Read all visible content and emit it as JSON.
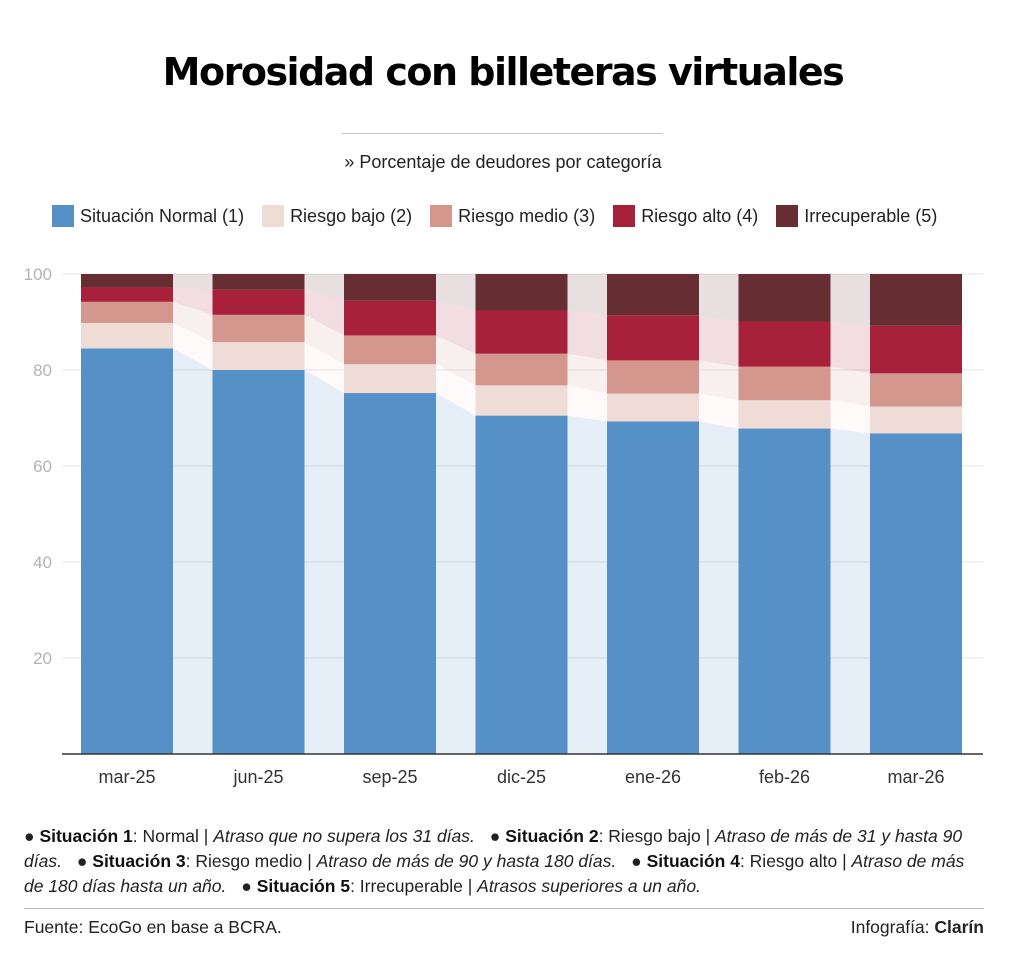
{
  "title": "Morosidad con billeteras virtuales",
  "subtitle": "» Porcentaje de deudores por categoría",
  "legend": [
    {
      "label": "Situación Normal (1)",
      "color": "#5590c6"
    },
    {
      "label": "Riesgo bajo (2)",
      "color": "#f0dcd7"
    },
    {
      "label": "Riesgo medio (3)",
      "color": "#d3978d"
    },
    {
      "label": "Riesgo alto (4)",
      "color": "#a8213a"
    },
    {
      "label": "Irrecuperable (5)",
      "color": "#662e32"
    }
  ],
  "chart_data": {
    "type": "bar",
    "stacked": true,
    "categories": [
      "mar-25",
      "jun-25",
      "sep-25",
      "dic-25",
      "ene-26",
      "feb-26",
      "mar-26"
    ],
    "series": [
      {
        "name": "Situación Normal (1)",
        "color": "#5590c6",
        "values": [
          84.5,
          80.0,
          75.2,
          70.5,
          69.3,
          67.8,
          66.8
        ]
      },
      {
        "name": "Riesgo bajo (2)",
        "color": "#f0dcd7",
        "values": [
          5.3,
          5.8,
          6.0,
          6.3,
          5.8,
          5.9,
          5.6
        ]
      },
      {
        "name": "Riesgo medio (3)",
        "color": "#d3978d",
        "values": [
          4.4,
          5.7,
          6.0,
          6.6,
          6.9,
          7.0,
          6.9
        ]
      },
      {
        "name": "Riesgo alto (4)",
        "color": "#a8213a",
        "values": [
          3.0,
          5.2,
          7.2,
          9.0,
          9.4,
          9.4,
          9.9
        ]
      },
      {
        "name": "Irrecuperable (5)",
        "color": "#662e32",
        "values": [
          2.8,
          3.3,
          5.6,
          7.6,
          8.6,
          9.9,
          10.8
        ]
      }
    ],
    "yticks": [
      20,
      40,
      60,
      80,
      100
    ],
    "ylim": [
      0,
      100
    ],
    "grid": true,
    "connectors": true
  },
  "notes": [
    {
      "bold": "Situación 1",
      "plain": ": Normal | ",
      "italic": "Atraso que no supera los 31 días."
    },
    {
      "bold": "Situación 2",
      "plain": ": Riesgo bajo | ",
      "italic": "Atraso de más de 31 y hasta 90 días."
    },
    {
      "bold": "Situación 3",
      "plain": ": Riesgo medio | ",
      "italic": "Atraso de más de 90 y hasta 180 días."
    },
    {
      "bold": "Situación 4",
      "plain": ": Riesgo alto | ",
      "italic": "Atraso de más de 180 días hasta un año."
    },
    {
      "bold": "Situación 5",
      "plain": ": Irrecuperable | ",
      "italic": "Atrasos superiores a un año."
    }
  ],
  "footer": {
    "source": "Fuente: EcoGo en base a BCRA.",
    "credit_prefix": "Infografía: ",
    "credit_brand": "Clarín"
  }
}
